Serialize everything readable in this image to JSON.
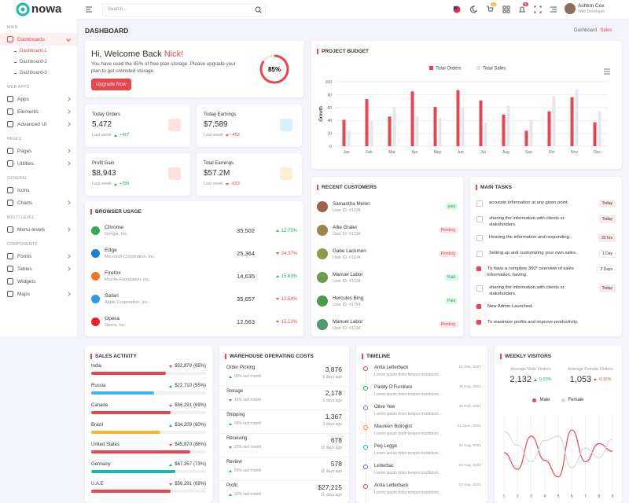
{
  "header": {
    "logo": "nowa",
    "search_placeholder": "Search...",
    "cart_badge": "5",
    "notification_badge": "3",
    "user_name": "Ashton Cox",
    "user_role": "Web Developer"
  },
  "sidebar": {
    "sections": [
      {
        "title": "MAIN",
        "items": [
          {
            "label": "Dashboards",
            "active": true,
            "children": [
              "Dashboard-1",
              "Dashboard-2",
              "Dashboard-3"
            ]
          }
        ]
      },
      {
        "title": "WEB APPS",
        "items": [
          {
            "label": "Apps"
          },
          {
            "label": "Elements"
          },
          {
            "label": "Advanced UI"
          }
        ]
      },
      {
        "title": "PAGES",
        "items": [
          {
            "label": "Pages"
          },
          {
            "label": "Utilities"
          }
        ]
      },
      {
        "title": "GENERAL",
        "items": [
          {
            "label": "Icons",
            "has_submenu": false
          },
          {
            "label": "Charts"
          }
        ]
      },
      {
        "title": "MULTI LEVEL",
        "items": [
          {
            "label": "Menu-levels"
          }
        ]
      },
      {
        "title": "COMPONENTS",
        "items": [
          {
            "label": "Forms"
          },
          {
            "label": "Tables"
          },
          {
            "label": "Widgets",
            "has_submenu": false
          },
          {
            "label": "Maps"
          }
        ]
      }
    ]
  },
  "page": {
    "title": "DASHBOARD",
    "breadcrumb": [
      "Dashboard",
      "Sales"
    ]
  },
  "welcome": {
    "greeting": "Hi, Welcome Back",
    "name": "Nick!",
    "text": "You have used the 85% of free plan storage. Please upgrade your plan to get unlimited storage.",
    "button": "Upgrade Now",
    "progress": 85,
    "progress_label": "85%"
  },
  "stats": [
    {
      "title": "Today Orders",
      "value": "5,472",
      "period": "Last week",
      "change": "+427",
      "color": "#19b159",
      "icon_color": "#fde2e2"
    },
    {
      "title": "Today Earnings",
      "value": "$7,589",
      "period": "Last week",
      "change": "-453",
      "color": "#e8464e",
      "icon_color": "#d9f1fb"
    },
    {
      "title": "Profit Gain",
      "value": "$8,943",
      "period": "Last week",
      "change": "+788",
      "color": "#19b159",
      "icon_color": "#fde2e2"
    },
    {
      "title": "Total Earnings",
      "value": "$57.2M",
      "period": "Last week",
      "change": "-693",
      "color": "#e8464e",
      "icon_color": "#fdefd6"
    }
  ],
  "browser_usage": {
    "title": "BROWSER USAGE",
    "rows": [
      {
        "name": "Chrome",
        "company": "Google, Inc.",
        "value": "35,502",
        "change": "12.75%",
        "color": "#19b159",
        "icon_color": "#34a853"
      },
      {
        "name": "Edge",
        "company": "Microsoft Corporation, Inc.",
        "value": "25,364",
        "change": "24.37%",
        "color": "#e8464e",
        "icon_color": "#1e7fd8"
      },
      {
        "name": "Firefox",
        "company": "Mozilla Foundation, Inc.",
        "value": "14,635",
        "change": "15,63%",
        "color": "#19b159",
        "icon_color": "#f5761a"
      },
      {
        "name": "Safari",
        "company": "Apple Corporation, Inc.",
        "value": "35,657",
        "change": "12.54%",
        "color": "#e8464e",
        "icon_color": "#2b9be8"
      },
      {
        "name": "Opera",
        "company": "Opera, Inc.",
        "value": "12,563",
        "change": "15.12%",
        "color": "#e8464e",
        "icon_color": "#e8232e"
      }
    ]
  },
  "project_budget": {
    "type": "bar",
    "title": "PROJECT BUDGET",
    "ylabel": "Growth",
    "categories": [
      "Jan",
      "Feb",
      "Mar",
      "Apr",
      "May",
      "Jun",
      "Jul",
      "Aug",
      "Sep",
      "Oct",
      "Nov",
      "Dec"
    ],
    "series": [
      {
        "name": "Total Orders",
        "color": "#e8464e",
        "values": [
          41,
          73,
          46,
          85,
          61,
          87,
          71,
          49,
          24,
          54,
          76,
          37
        ]
      },
      {
        "name": "Total Sales",
        "color": "#e6e7ec",
        "values": [
          24,
          39,
          61,
          46,
          44,
          59,
          37,
          63,
          41,
          78,
          88,
          54
        ]
      }
    ],
    "ylim": [
      0,
      100
    ],
    "yticks": [
      0,
      20,
      40,
      60,
      80,
      100
    ],
    "grid": true
  },
  "recent_customers": {
    "title": "RECENT CUSTOMERS",
    "rows": [
      {
        "name": "Samantha Melon",
        "id": "User ID: #1234",
        "status": "paid",
        "color": "#19b159"
      },
      {
        "name": "Allie Grater",
        "id": "User ID: #1234",
        "status": "Pending",
        "color": "#e8464e"
      },
      {
        "name": "Gabe Lackmen",
        "id": "User ID: #1234",
        "status": "Pending",
        "color": "#e8464e"
      },
      {
        "name": "Manuel Labor",
        "id": "User ID: #1234",
        "status": "Paid",
        "color": "#19b159"
      },
      {
        "name": "Hercules Bing",
        "id": "User ID: #1754",
        "status": "Paid",
        "color": "#19b159"
      },
      {
        "name": "Manuel Labor",
        "id": "User ID: #1234",
        "status": "Pending",
        "color": "#e8464e"
      }
    ]
  },
  "main_tasks": {
    "title": "MAIN TASKS",
    "rows": [
      {
        "text": "accurate information at any given point.",
        "badge": "Today",
        "checked": false
      },
      {
        "text": "sharing the information with clients or stakeholders.",
        "badge": "Today",
        "checked": false
      },
      {
        "text": "Hearing the information and responding.",
        "badge": "22 hrs",
        "checked": false
      },
      {
        "text": "Setting up and customizing your own sales.",
        "badge": "1 Day",
        "checked": false
      },
      {
        "text": "To have a complete 360° overview of sales information, having.",
        "badge": "2 Days",
        "checked": true
      },
      {
        "text": "sharing the information with clients or stakeholders.",
        "badge": "Today",
        "checked": false
      },
      {
        "text": "New Admin Launched.",
        "checked": true
      },
      {
        "text": "To maximize profits and improve productivity.",
        "checked": true
      }
    ]
  },
  "sales_activity": {
    "title": "SALES ACTIVITY",
    "rows": [
      {
        "country": "India",
        "amount": "$32,879",
        "percent": 65,
        "percent_label": "(65%)",
        "color": "#e8464e",
        "trend_color": "#e8464e"
      },
      {
        "country": "Russia",
        "amount": "$22,710",
        "percent": 55,
        "percent_label": "(55%)",
        "color": "#3eb7e8",
        "trend_color": "#19b159"
      },
      {
        "country": "Canada",
        "amount": "$56,291",
        "percent": 69,
        "percent_label": "(69%)",
        "color": "#e8464e",
        "trend_color": "#e8464e"
      },
      {
        "country": "Brazil",
        "amount": "$34,209",
        "percent": 60,
        "percent_label": "(60%)",
        "color": "#f7b731",
        "trend_color": "#19b159"
      },
      {
        "country": "United States",
        "amount": "$45,870",
        "percent": 86,
        "percent_label": "(86%)",
        "color": "#e8464e",
        "trend_color": "#e8464e"
      },
      {
        "country": "Germany",
        "amount": "$67,357",
        "percent": 73,
        "percent_label": "(73%)",
        "color": "#1fb5ac",
        "trend_color": "#19b159"
      },
      {
        "country": "U.A.E",
        "amount": "$56,291",
        "percent": 69,
        "percent_label": "(69%)",
        "color": "#e8464e",
        "trend_color": "#e8464e"
      }
    ]
  },
  "warehouse": {
    "title": "WAREHOUSE OPERATING COSTS",
    "rows": [
      {
        "name": "Order Picking",
        "value": "3,876",
        "time": "5 days ago",
        "change": "03% last month",
        "color": "#19b159"
      },
      {
        "name": "Storage",
        "value": "2,178",
        "time": "2 days ago",
        "change": "16% last month",
        "color": "#e8464e"
      },
      {
        "name": "Shipping",
        "value": "1,367",
        "time": "3 days ago",
        "change": "06% last month",
        "color": "#19b159"
      },
      {
        "name": "Receiving",
        "value": "678",
        "time": "10 days ago",
        "change": "25% last month",
        "color": "#e8464e"
      },
      {
        "name": "Review",
        "value": "578",
        "time": "11 days ago",
        "change": "55% last month",
        "color": "#19b159"
      },
      {
        "name": "Profit",
        "value": "$27,215",
        "time": "11 days ago",
        "change": "32% last month",
        "color": "#19b159"
      }
    ]
  },
  "timeline": {
    "title": "TIMELINE",
    "rows": [
      {
        "name": "Anita Letterback",
        "date": "23 Sep, 2021",
        "text": "Lorem ipsum dolor tempor incididunt...",
        "color": "#e8464e"
      },
      {
        "name": "Paddy O'Furniture",
        "date": "16 Aug, 2021",
        "text": "Lorem ipsum dolor tempor incididunt...",
        "color": "#19b159"
      },
      {
        "name": "Olive Yew",
        "date": "23 Feb, 2021",
        "text": "Lorem ipsum dolor tempor incididunt...",
        "color": "#8e54e9"
      },
      {
        "name": "Maureen Biologist",
        "date": "21 June, 2021",
        "text": "Lorem ipsum dolor tempor incididunt...",
        "color": "#f5761a"
      },
      {
        "name": "Peg Legge",
        "date": "04 Aug, 2021",
        "text": "Lorem ipsum dolor tempor incididunt...",
        "color": "#1fb5ac"
      },
      {
        "name": "Letterbac",
        "date": "04 Aug, 2021",
        "text": "Lorem ipsum dolor tempor incididunt...",
        "color": "#8e54e9"
      },
      {
        "name": "Anita Letterback",
        "date": "23 Sep, 2021",
        "text": "Lorem ipsum dolor tempor incididunt...",
        "color": "#e8464e"
      }
    ]
  },
  "weekly_visitors": {
    "title": "WEEKLY VISITORS",
    "stats": [
      {
        "label": "Average Male Visitors",
        "value": "2,132",
        "change": "0.23%",
        "color": "#19b159"
      },
      {
        "label": "Average Female Visitors",
        "value": "1,053",
        "change": "0.11%",
        "color": "#e8464e"
      }
    ],
    "chart": {
      "type": "line",
      "x": [
        1,
        2,
        3,
        4,
        5,
        6,
        7,
        8,
        9
      ],
      "xlim": [
        1,
        9
      ],
      "xticks": [
        1,
        2,
        3,
        4,
        5,
        6,
        7,
        8,
        9
      ],
      "ylim": [
        0,
        100
      ],
      "series": [
        {
          "name": "Male",
          "color": "#e8464e",
          "values": [
            50,
            28,
            72,
            40,
            18,
            80,
            38,
            62,
            52
          ]
        },
        {
          "name": "Female",
          "color": "#d8d9de",
          "values": [
            78,
            60,
            38,
            66,
            72,
            30,
            56,
            44,
            68
          ]
        }
      ]
    }
  }
}
